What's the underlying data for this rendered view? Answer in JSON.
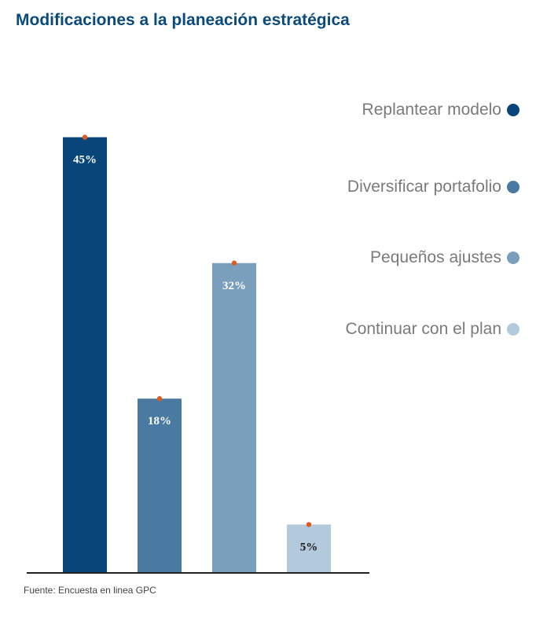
{
  "chart_data": {
    "type": "bar",
    "title": "Modificaciones a la planeación estratégica",
    "categories": [
      "Replantear modelo",
      "Diversificar portafolio",
      "Pequeños ajustes",
      "Continuar con el plan"
    ],
    "values": [
      45,
      18,
      32,
      5
    ],
    "value_labels": [
      "45%",
      "18%",
      "32%",
      "5%"
    ],
    "colors": [
      "#08467a",
      "#4a7aa2",
      "#7a9fbd",
      "#b3c9dc"
    ],
    "label_colors": [
      "#ffffff",
      "#ffffff",
      "#ffffff",
      "#1a1a1a"
    ],
    "marker_color": "#e05a1e",
    "ylim": [
      0,
      50
    ],
    "legend_position": "right",
    "grid": false,
    "source": "Fuente: Encuesta en linea GPC"
  }
}
